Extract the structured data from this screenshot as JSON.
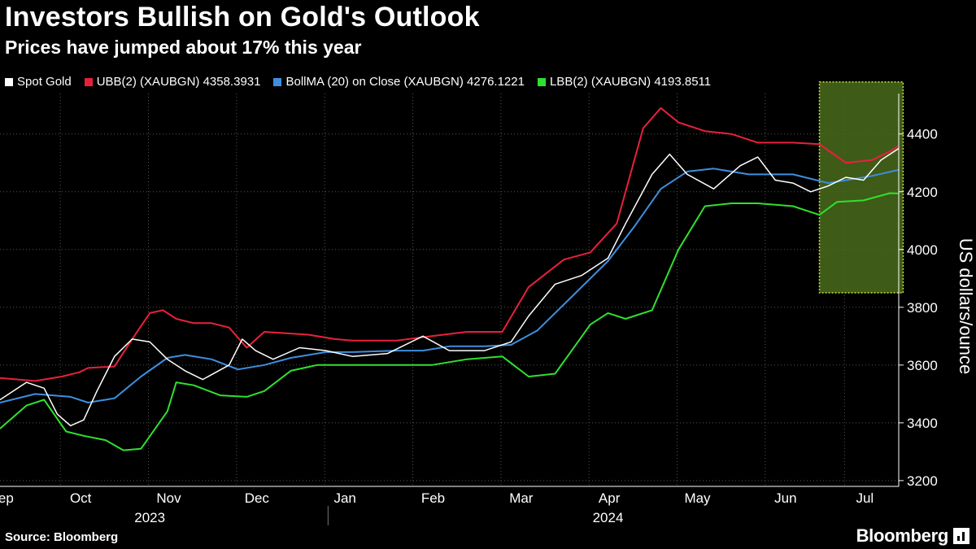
{
  "title": "Investors Bullish on Gold's Outlook",
  "subtitle": "Prices have jumped about 17% this year",
  "source": "Source: Bloomberg",
  "brand": "Bloomberg",
  "colors": {
    "background": "#000000",
    "spot": "#ffffff",
    "ubb": "#e8213b",
    "bollma": "#3d8fe0",
    "lbb": "#2fe02f",
    "highlight": "#4a6b1c"
  },
  "legend": [
    {
      "label": "Spot Gold",
      "color": "#ffffff"
    },
    {
      "label": "UBB(2) (XAUBGN) 4358.3931",
      "color": "#e8213b"
    },
    {
      "label": "BollMA (20)  on Close (XAUBGN) 4276.1221",
      "color": "#3d8fe0"
    },
    {
      "label": "LBB(2) (XAUBGN) 4193.8511",
      "color": "#2fe02f"
    }
  ],
  "chart_data": {
    "type": "line",
    "ylabel": "US dollars/ounce",
    "ylim": [
      3180,
      4540
    ],
    "yticks": [
      3200,
      3400,
      3600,
      3800,
      4000,
      4200,
      4400
    ],
    "xlim": [
      0,
      10.2
    ],
    "xticks": [
      {
        "label": "Sep",
        "x": 0.2
      },
      {
        "label": "Oct",
        "x": 1.1
      },
      {
        "label": "Nov",
        "x": 2.1
      },
      {
        "label": "Dec",
        "x": 3.1
      },
      {
        "label": "Jan",
        "x": 4.1
      },
      {
        "label": "Feb",
        "x": 5.1
      },
      {
        "label": "Mar",
        "x": 6.1
      },
      {
        "label": "Apr",
        "x": 7.1
      },
      {
        "label": "May",
        "x": 8.1
      },
      {
        "label": "Jun",
        "x": 9.1
      },
      {
        "label": "Jul",
        "x": 10.0
      }
    ],
    "years": [
      {
        "label": "2023",
        "x": 1.7
      },
      {
        "label": "2024",
        "x": 6.9
      }
    ],
    "year_divider_x": 3.4,
    "highlight": {
      "x0": 9.3,
      "x1": 10.25,
      "y0": 3850,
      "y1": 4580
    },
    "series": [
      {
        "name": "UBB(2) (XAUBGN) 4358.3931",
        "color": "#e8213b",
        "points": [
          [
            0,
            3555
          ],
          [
            0.4,
            3545
          ],
          [
            0.7,
            3560
          ],
          [
            0.9,
            3575
          ],
          [
            1.0,
            3590
          ],
          [
            1.3,
            3595
          ],
          [
            1.5,
            3690
          ],
          [
            1.7,
            3780
          ],
          [
            1.85,
            3790
          ],
          [
            2.0,
            3760
          ],
          [
            2.2,
            3745
          ],
          [
            2.4,
            3745
          ],
          [
            2.6,
            3730
          ],
          [
            2.8,
            3660
          ],
          [
            3.0,
            3715
          ],
          [
            3.5,
            3705
          ],
          [
            3.8,
            3690
          ],
          [
            4.0,
            3685
          ],
          [
            4.5,
            3685
          ],
          [
            4.9,
            3700
          ],
          [
            5.3,
            3715
          ],
          [
            5.7,
            3715
          ],
          [
            6.0,
            3870
          ],
          [
            6.4,
            3965
          ],
          [
            6.7,
            3990
          ],
          [
            7.0,
            4090
          ],
          [
            7.3,
            4420
          ],
          [
            7.5,
            4490
          ],
          [
            7.7,
            4440
          ],
          [
            8.0,
            4410
          ],
          [
            8.3,
            4400
          ],
          [
            8.6,
            4370
          ],
          [
            9.0,
            4370
          ],
          [
            9.3,
            4365
          ],
          [
            9.6,
            4300
          ],
          [
            9.9,
            4310
          ],
          [
            10.1,
            4340
          ],
          [
            10.2,
            4358
          ]
        ]
      },
      {
        "name": "BollMA (20)  on Close (XAUBGN) 4276.1221",
        "color": "#3d8fe0",
        "points": [
          [
            0,
            3470
          ],
          [
            0.4,
            3500
          ],
          [
            0.8,
            3490
          ],
          [
            1.0,
            3470
          ],
          [
            1.3,
            3485
          ],
          [
            1.6,
            3560
          ],
          [
            1.9,
            3625
          ],
          [
            2.1,
            3635
          ],
          [
            2.4,
            3620
          ],
          [
            2.7,
            3585
          ],
          [
            3.0,
            3600
          ],
          [
            3.3,
            3625
          ],
          [
            3.7,
            3645
          ],
          [
            4.0,
            3645
          ],
          [
            4.5,
            3650
          ],
          [
            4.8,
            3650
          ],
          [
            5.1,
            3665
          ],
          [
            5.5,
            3665
          ],
          [
            5.8,
            3670
          ],
          [
            6.1,
            3720
          ],
          [
            6.5,
            3840
          ],
          [
            6.9,
            3960
          ],
          [
            7.2,
            4080
          ],
          [
            7.5,
            4210
          ],
          [
            7.8,
            4270
          ],
          [
            8.1,
            4280
          ],
          [
            8.5,
            4260
          ],
          [
            9.0,
            4260
          ],
          [
            9.4,
            4230
          ],
          [
            9.7,
            4245
          ],
          [
            9.9,
            4255
          ],
          [
            10.2,
            4276
          ]
        ]
      },
      {
        "name": "LBB(2) (XAUBGN) 4193.8511",
        "color": "#2fe02f",
        "points": [
          [
            0,
            3380
          ],
          [
            0.3,
            3460
          ],
          [
            0.5,
            3480
          ],
          [
            0.75,
            3370
          ],
          [
            0.95,
            3355
          ],
          [
            1.2,
            3340
          ],
          [
            1.4,
            3305
          ],
          [
            1.6,
            3310
          ],
          [
            1.9,
            3440
          ],
          [
            2.0,
            3540
          ],
          [
            2.2,
            3530
          ],
          [
            2.5,
            3495
          ],
          [
            2.8,
            3490
          ],
          [
            3.0,
            3510
          ],
          [
            3.3,
            3580
          ],
          [
            3.6,
            3600
          ],
          [
            4.0,
            3600
          ],
          [
            4.5,
            3600
          ],
          [
            4.9,
            3600
          ],
          [
            5.3,
            3620
          ],
          [
            5.7,
            3630
          ],
          [
            6.0,
            3560
          ],
          [
            6.3,
            3570
          ],
          [
            6.7,
            3740
          ],
          [
            6.9,
            3780
          ],
          [
            7.1,
            3760
          ],
          [
            7.4,
            3790
          ],
          [
            7.7,
            4000
          ],
          [
            8.0,
            4150
          ],
          [
            8.3,
            4160
          ],
          [
            8.6,
            4160
          ],
          [
            9.0,
            4150
          ],
          [
            9.3,
            4120
          ],
          [
            9.5,
            4165
          ],
          [
            9.8,
            4170
          ],
          [
            10.1,
            4195
          ],
          [
            10.2,
            4194
          ]
        ]
      },
      {
        "name": "Spot Gold",
        "color": "#ffffff",
        "points": [
          [
            0,
            3480
          ],
          [
            0.3,
            3540
          ],
          [
            0.5,
            3520
          ],
          [
            0.65,
            3430
          ],
          [
            0.8,
            3390
          ],
          [
            0.95,
            3410
          ],
          [
            1.1,
            3510
          ],
          [
            1.3,
            3630
          ],
          [
            1.5,
            3690
          ],
          [
            1.7,
            3680
          ],
          [
            1.9,
            3620
          ],
          [
            2.1,
            3580
          ],
          [
            2.3,
            3550
          ],
          [
            2.6,
            3600
          ],
          [
            2.75,
            3690
          ],
          [
            2.9,
            3650
          ],
          [
            3.1,
            3620
          ],
          [
            3.4,
            3660
          ],
          [
            3.7,
            3650
          ],
          [
            4.0,
            3630
          ],
          [
            4.4,
            3640
          ],
          [
            4.8,
            3700
          ],
          [
            5.1,
            3650
          ],
          [
            5.5,
            3650
          ],
          [
            5.8,
            3680
          ],
          [
            6.0,
            3770
          ],
          [
            6.3,
            3880
          ],
          [
            6.6,
            3910
          ],
          [
            6.9,
            3970
          ],
          [
            7.1,
            4090
          ],
          [
            7.4,
            4260
          ],
          [
            7.6,
            4330
          ],
          [
            7.8,
            4260
          ],
          [
            8.1,
            4210
          ],
          [
            8.4,
            4290
          ],
          [
            8.6,
            4320
          ],
          [
            8.8,
            4240
          ],
          [
            9.0,
            4230
          ],
          [
            9.2,
            4200
          ],
          [
            9.4,
            4220
          ],
          [
            9.6,
            4250
          ],
          [
            9.8,
            4240
          ],
          [
            10.0,
            4310
          ],
          [
            10.2,
            4350
          ]
        ]
      }
    ]
  }
}
